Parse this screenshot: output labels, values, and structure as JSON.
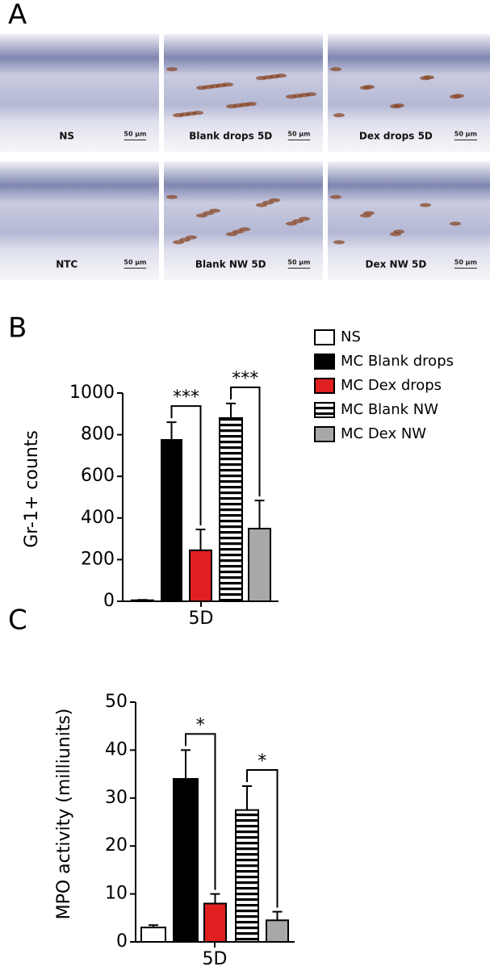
{
  "panel_labels": [
    "A",
    "B",
    "C"
  ],
  "micrographs": [
    {
      "label": "NS",
      "scale": "50 µm"
    },
    {
      "label": "Blank drops 5D",
      "scale": "50 µm"
    },
    {
      "label": "Dex drops  5D",
      "scale": "50 µm"
    },
    {
      "label": "NTC",
      "scale": "50 µm"
    },
    {
      "label": "Blank NW 5D",
      "scale": "50 µm"
    },
    {
      "label": "Dex NW 5D",
      "scale": "50 µm"
    }
  ],
  "chart_data": [
    {
      "type": "bar",
      "y_label": "Gr-1+ counts",
      "categories": [
        "5D"
      ],
      "ylim": [
        0,
        1000
      ],
      "yticks": [
        0,
        200,
        400,
        600,
        800,
        1000
      ],
      "series": [
        {
          "name": "NS",
          "color": "#ffffff",
          "values": [
            5
          ],
          "errors": [
            2
          ]
        },
        {
          "name": "MC Blank drops",
          "color": "#000000",
          "values": [
            775
          ],
          "errors": [
            85
          ]
        },
        {
          "name": "MC Dex drops",
          "color": "#e02020",
          "values": [
            245
          ],
          "errors": [
            100
          ]
        },
        {
          "name": "MC Blank NW",
          "color": "#ffffff",
          "hatch": "horizontal",
          "values": [
            880
          ],
          "errors": [
            70
          ]
        },
        {
          "name": "MC Dex NW",
          "color": "#a8a8a8",
          "values": [
            349
          ],
          "errors": [
            135
          ]
        }
      ],
      "annotations": [
        "***",
        "***"
      ],
      "legend": "top-right"
    },
    {
      "type": "bar",
      "y_label": "MPO activity (milliunits)",
      "categories": [
        "5D"
      ],
      "ylim": [
        0,
        50
      ],
      "yticks": [
        0,
        10,
        20,
        30,
        40,
        50
      ],
      "series": [
        {
          "color": "#ffffff",
          "values": [
            3
          ],
          "errors": [
            0.5
          ]
        },
        {
          "color": "#000000",
          "values": [
            34
          ],
          "errors": [
            6
          ]
        },
        {
          "color": "#e02020",
          "values": [
            8
          ],
          "errors": [
            2
          ]
        },
        {
          "color": "#ffffff",
          "hatch": "horizontal",
          "values": [
            27.5
          ],
          "errors": [
            5
          ]
        },
        {
          "color": "#a8a8a8",
          "values": [
            4.5
          ],
          "errors": [
            1.8
          ]
        }
      ],
      "annotations": [
        "*",
        "*"
      ]
    }
  ]
}
